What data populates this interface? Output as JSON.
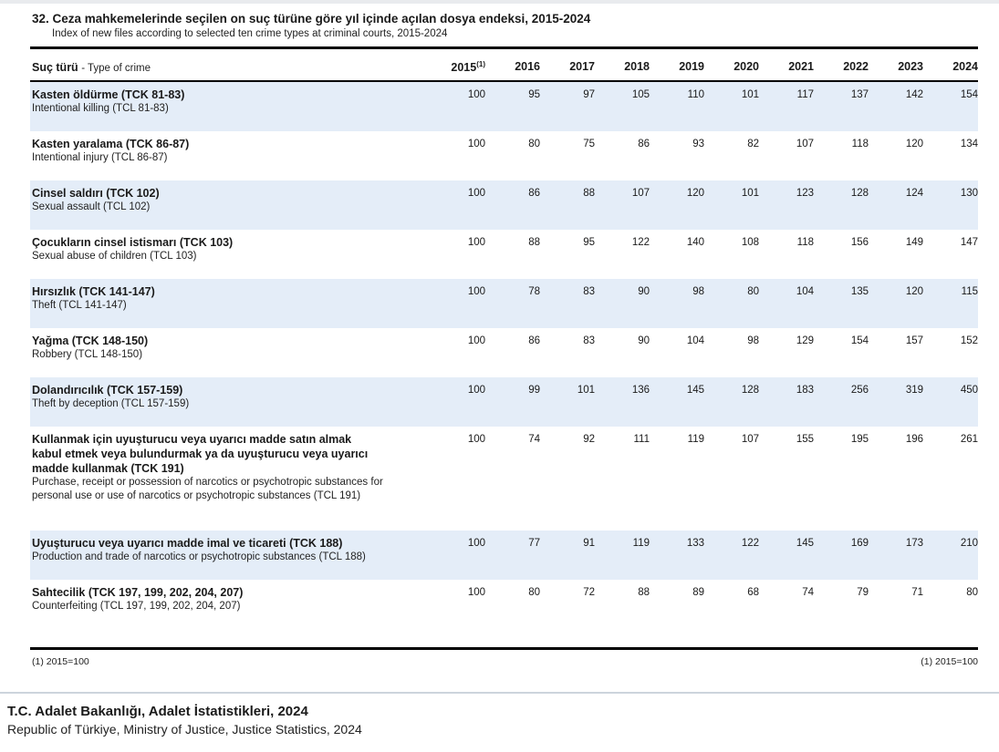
{
  "header": {
    "title_tr": "32. Ceza mahkemelerinde seçilen on suç türüne göre yıl içinde açılan dosya endeksi, 2015-2024",
    "title_en": "Index of new files according to selected ten crime types at criminal courts, 2015-2024"
  },
  "table": {
    "crime_header_tr": "Suç türü",
    "crime_header_en": "- Type of crime",
    "years": [
      {
        "label": "2015",
        "footnote_marker": "(1)"
      },
      {
        "label": "2016"
      },
      {
        "label": "2017"
      },
      {
        "label": "2018"
      },
      {
        "label": "2019"
      },
      {
        "label": "2020"
      },
      {
        "label": "2021"
      },
      {
        "label": "2022"
      },
      {
        "label": "2023"
      },
      {
        "label": "2024"
      }
    ],
    "rows": [
      {
        "name_tr": "Kasten öldürme (TCK 81-83)",
        "name_en": "Intentional killing (TCL 81-83)",
        "values": [
          100,
          95,
          97,
          105,
          110,
          101,
          117,
          137,
          142,
          154
        ],
        "shaded": true
      },
      {
        "name_tr": "Kasten yaralama (TCK 86-87)",
        "name_en": "Intentional injury (TCL 86-87)",
        "values": [
          100,
          80,
          75,
          86,
          93,
          82,
          107,
          118,
          120,
          134
        ],
        "shaded": false
      },
      {
        "name_tr": "Cinsel saldırı (TCK 102)",
        "name_en": "Sexual assault (TCL 102)",
        "values": [
          100,
          86,
          88,
          107,
          120,
          101,
          123,
          128,
          124,
          130
        ],
        "shaded": true
      },
      {
        "name_tr": "Çocukların cinsel istismarı (TCK 103)",
        "name_en": "Sexual abuse of children (TCL 103)",
        "values": [
          100,
          88,
          95,
          122,
          140,
          108,
          118,
          156,
          149,
          147
        ],
        "shaded": false
      },
      {
        "name_tr": "Hırsızlık (TCK 141-147)",
        "name_en": "Theft (TCL 141-147)",
        "values": [
          100,
          78,
          83,
          90,
          98,
          80,
          104,
          135,
          120,
          115
        ],
        "shaded": true
      },
      {
        "name_tr": "Yağma (TCK 148-150)",
        "name_en": "Robbery (TCL 148-150)",
        "values": [
          100,
          86,
          83,
          90,
          104,
          98,
          129,
          154,
          157,
          152
        ],
        "shaded": false
      },
      {
        "name_tr": "Dolandırıcılık (TCK 157-159)",
        "name_en": "Theft by deception (TCL 157-159)",
        "values": [
          100,
          99,
          101,
          136,
          145,
          128,
          183,
          256,
          319,
          450
        ],
        "shaded": true
      },
      {
        "name_tr": "Kullanmak için uyuşturucu veya uyarıcı madde satın almak\nkabul etmek veya bulundurmak ya da uyuşturucu veya uyarıcı\nmadde kullanmak (TCK 191)",
        "name_en": "Purchase, receipt or possession of narcotics or psychotropic substances for\npersonal use or use of narcotics or psychotropic substances (TCL 191)",
        "values": [
          100,
          74,
          92,
          111,
          119,
          107,
          155,
          195,
          196,
          261
        ],
        "shaded": false
      },
      {
        "name_tr": "Uyuşturucu veya uyarıcı madde imal ve ticareti (TCK 188)",
        "name_en": "Production and trade of narcotics or psychotropic substances (TCL 188)",
        "values": [
          100,
          77,
          91,
          119,
          133,
          122,
          145,
          169,
          173,
          210
        ],
        "shaded": true
      },
      {
        "name_tr": "Sahtecilik (TCK 197, 199, 202, 204, 207)",
        "name_en": "Counterfeiting (TCL 197, 199, 202, 204, 207)",
        "values": [
          100,
          80,
          72,
          88,
          89,
          68,
          74,
          79,
          71,
          80
        ],
        "shaded": false
      }
    ]
  },
  "footnotes": {
    "left": "(1) 2015=100",
    "right": "(1) 2015=100"
  },
  "source": {
    "line_tr": "T.C. Adalet Bakanlığı, Adalet İstatistikleri, 2024",
    "line_en": "Republic of Türkiye, Ministry of Justice, Justice Statistics, 2024"
  },
  "colors": {
    "row_shade": "#e4edf8",
    "rule": "#000000",
    "gray_rule": "#ccd4dc"
  }
}
